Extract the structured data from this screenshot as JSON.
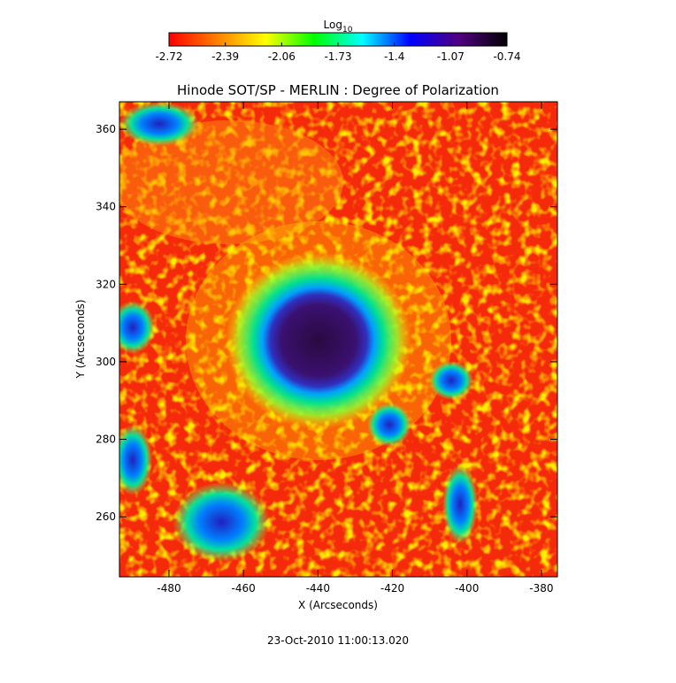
{
  "chart_data": {
    "type": "image",
    "title": "Hinode SOT/SP - MERLIN : Degree of Polarization",
    "x_label": "X (Arcseconds)",
    "y_label": "Y (Arcseconds)",
    "xlim": [
      -493.3,
      -375.7
    ],
    "ylim": [
      244.5,
      367.1
    ],
    "xticks": [
      -480,
      -460,
      -440,
      -420,
      -400,
      -380
    ],
    "yticks": [
      260,
      280,
      300,
      320,
      340,
      360
    ],
    "colorbar": {
      "label": "Log",
      "label_subscript": "10",
      "lim": [
        -2.72,
        -0.74
      ],
      "ticks": [
        -2.72,
        -2.39,
        -2.06,
        -1.73,
        -1.4,
        -1.07,
        -0.74
      ],
      "colormap": [
        "#ff0000",
        "#ff7f00",
        "#ffff00",
        "#00ff00",
        "#00ffff",
        "#0000ff",
        "#50007f",
        "#000000"
      ]
    },
    "footer": "23-Oct-2010 11:00:13.020"
  }
}
